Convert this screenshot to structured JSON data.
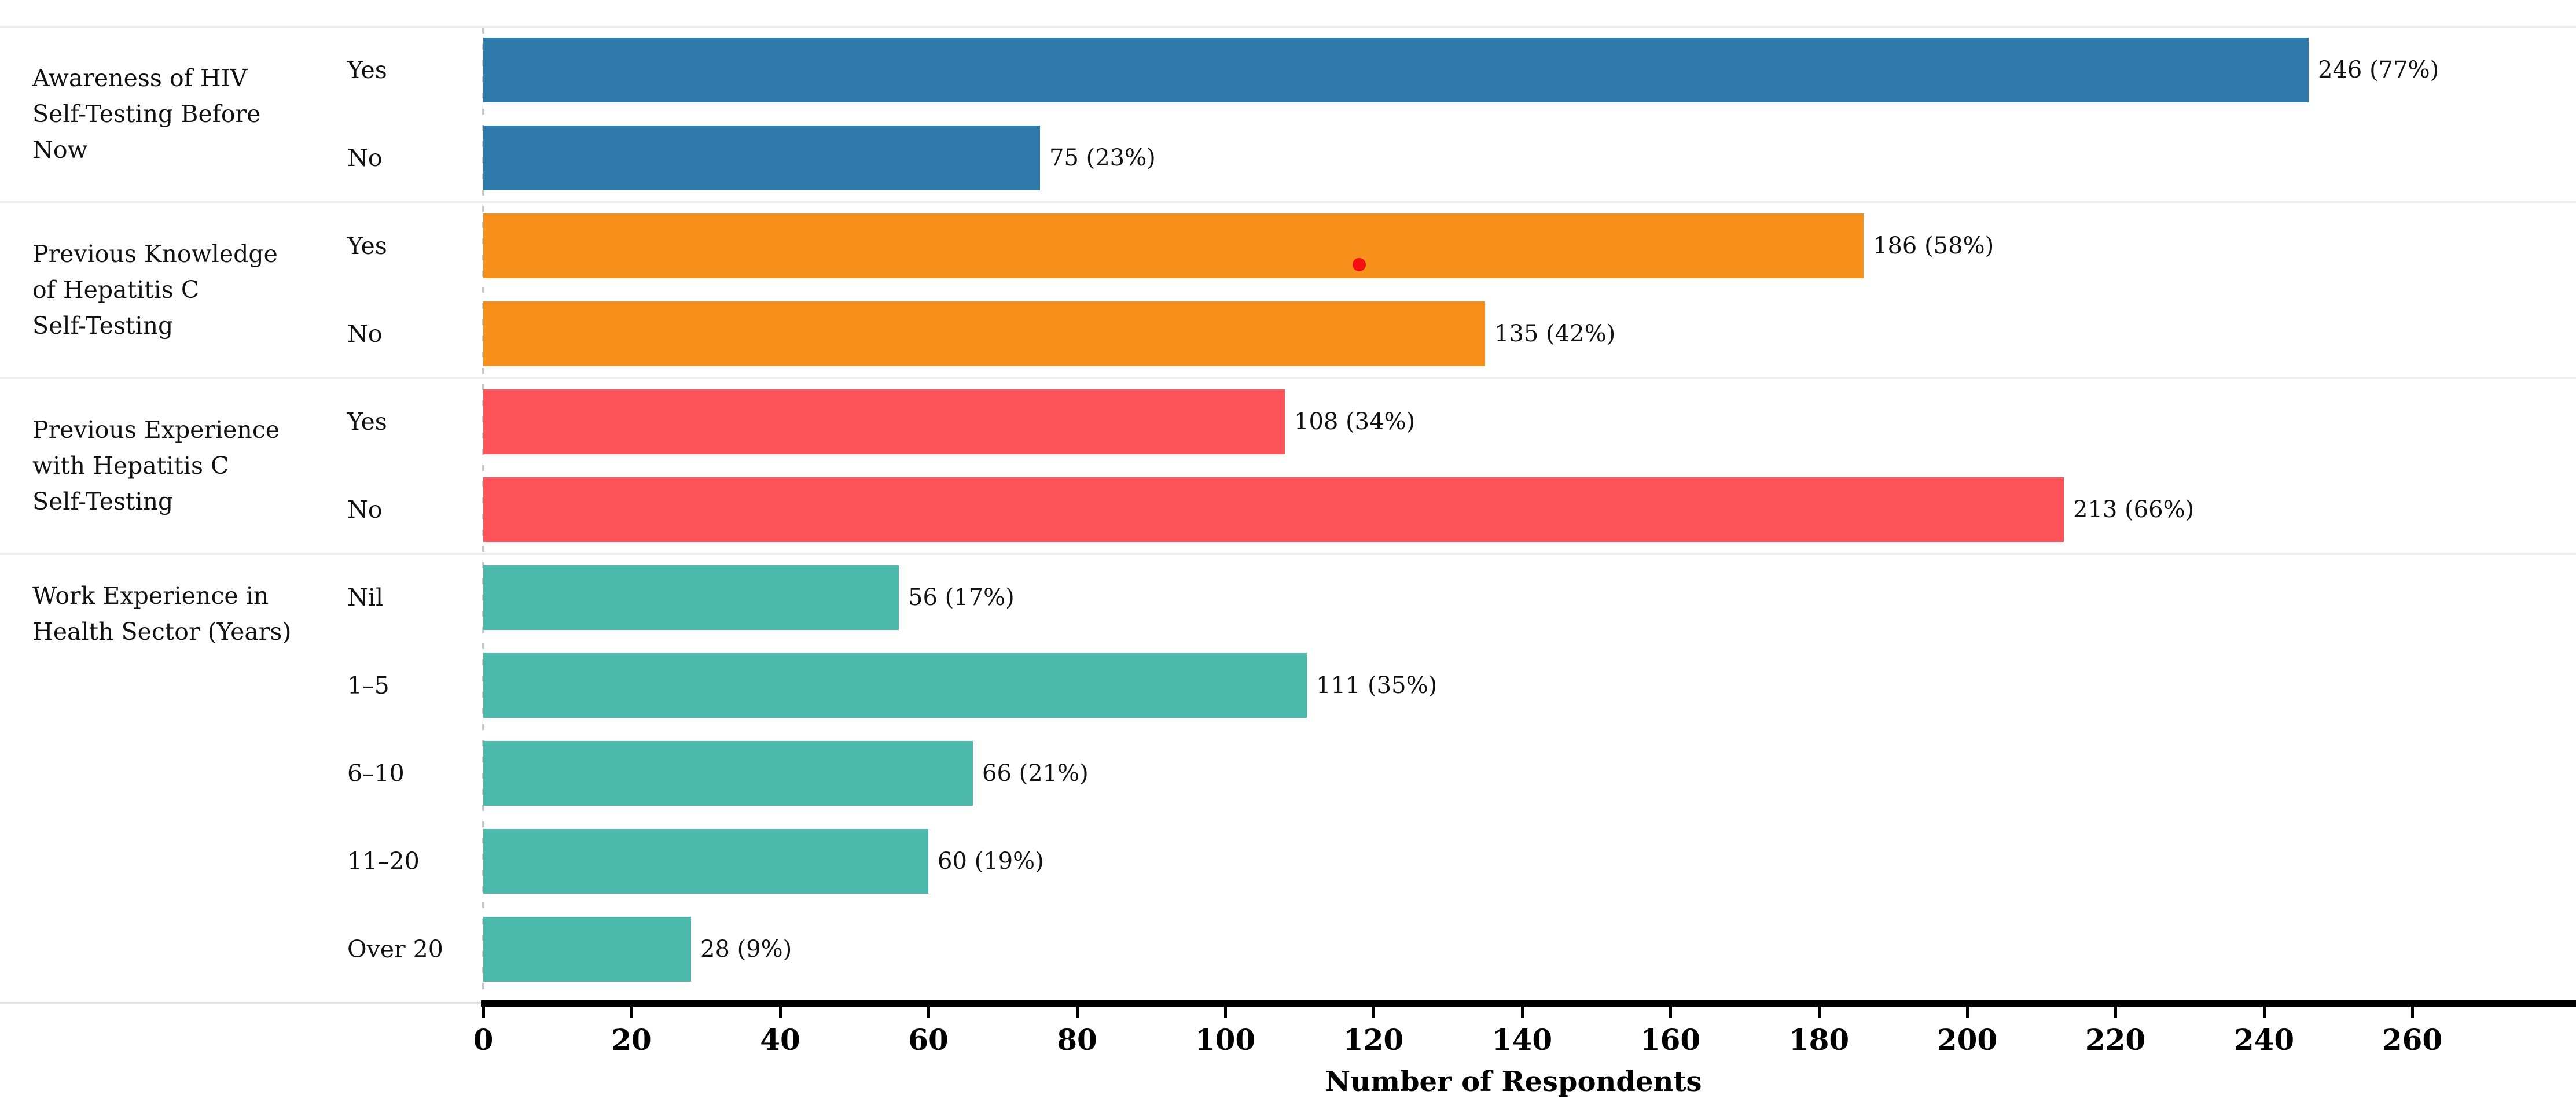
{
  "chart_data": {
    "type": "bar",
    "orientation": "horizontal",
    "title": "",
    "xlabel": "Number of Respondents",
    "ylabel": "",
    "xlim": [
      0,
      277
    ],
    "x_ticks": [
      0,
      20,
      40,
      60,
      80,
      100,
      120,
      140,
      160,
      180,
      200,
      220,
      240,
      260
    ],
    "grid": "off",
    "value_label_format": "count (percent)",
    "groups": [
      {
        "label_lines": [
          "Awareness of HIV",
          "Self-Testing Before",
          "Now"
        ],
        "color": "#2D7AAB",
        "bars": [
          {
            "category": "Yes",
            "value": 246,
            "pct": "77%",
            "label": "246 (77%)"
          },
          {
            "category": "No",
            "value": 75,
            "pct": "23%",
            "label": "75 (23%)"
          }
        ]
      },
      {
        "label_lines": [
          "Previous Knowledge",
          "of Hepatitis C",
          "Self-Testing"
        ],
        "color": "#F8911C",
        "bars": [
          {
            "category": "Yes",
            "value": 186,
            "pct": "58%",
            "label": "186 (58%)"
          },
          {
            "category": "No",
            "value": 135,
            "pct": "42%",
            "label": "135 (42%)"
          }
        ]
      },
      {
        "label_lines": [
          "Previous Experience",
          "with Hepatitis C",
          "Self-Testing"
        ],
        "color": "#FD5359",
        "bars": [
          {
            "category": "Yes",
            "value": 108,
            "pct": "34%",
            "label": "108 (34%)"
          },
          {
            "category": "No",
            "value": 213,
            "pct": "66%",
            "label": "213 (66%)"
          }
        ]
      },
      {
        "label_lines": [
          "Work Experience in",
          "Health Sector (Years)"
        ],
        "color": "#4BB8AC",
        "bars": [
          {
            "category": "Nil",
            "value": 56,
            "pct": "17%",
            "label": "56 (17%)"
          },
          {
            "category": "1–5",
            "value": 111,
            "pct": "35%",
            "label": "111 (35%)"
          },
          {
            "category": "6–10",
            "value": 66,
            "pct": "21%",
            "label": "66 (21%)"
          },
          {
            "category": "11–20",
            "value": 60,
            "pct": "19%",
            "label": "60 (19%)"
          },
          {
            "category": "Over 20",
            "value": 28,
            "pct": "9%",
            "label": "28 (9%)"
          }
        ]
      }
    ],
    "stray_dot": {
      "color": "#F60F0F",
      "x_value": 118,
      "on_bar": "Previous Knowledge of Hepatitis C Self-Testing / Yes"
    },
    "separator_color": "#ececec",
    "axis_color": "#000000"
  }
}
